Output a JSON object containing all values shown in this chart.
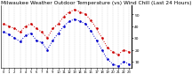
{
  "title": "Milwaukee Weather Outdoor Temperature (vs) Wind Chill (Last 24 Hours)",
  "bg_color": "#ffffff",
  "plot_bg_color": "#ffffff",
  "grid_color": "#aaaaaa",
  "temp_color": "#cc0000",
  "windchill_color": "#0000cc",
  "temp_x": [
    0,
    1,
    2,
    3,
    4,
    5,
    6,
    7,
    8,
    9,
    10,
    11,
    12,
    13,
    14,
    15,
    16,
    17,
    18,
    19,
    20,
    21,
    22,
    23
  ],
  "temp_y": [
    42,
    40,
    38,
    35,
    40,
    42,
    38,
    35,
    30,
    38,
    42,
    48,
    52,
    54,
    52,
    50,
    45,
    38,
    30,
    22,
    18,
    16,
    20,
    18
  ],
  "windchill_y": [
    35,
    33,
    30,
    27,
    32,
    34,
    28,
    26,
    20,
    28,
    34,
    40,
    44,
    46,
    44,
    42,
    36,
    28,
    20,
    12,
    8,
    6,
    10,
    8
  ],
  "ylim_min": 5,
  "ylim_max": 58,
  "ytick_values": [
    10,
    20,
    30,
    40,
    50
  ],
  "ytick_labels": [
    "10",
    "20",
    "30",
    "40",
    "50"
  ],
  "n_points": 24,
  "title_fontsize": 4.2,
  "tick_fontsize": 3.2,
  "marker_size": 1.8,
  "line_width": 0.7
}
